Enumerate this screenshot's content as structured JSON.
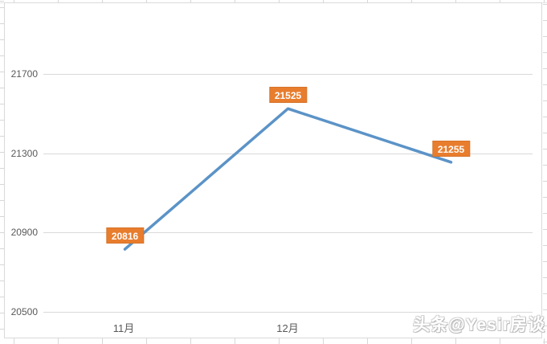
{
  "watermark": {
    "text": "头条@Yesir房谈"
  },
  "chart_data": {
    "type": "line",
    "categories": [
      "11月",
      "12月",
      ""
    ],
    "values": [
      20816,
      21525,
      21255
    ],
    "data_labels": [
      "20816",
      "21525",
      "21255"
    ],
    "x_tick_labels": [
      "11月",
      "12月"
    ],
    "y_tick_labels": [
      "21700",
      "21300",
      "20900",
      "20500"
    ],
    "ylim": [
      20500,
      21700
    ],
    "y_major_unit": 400,
    "title": "",
    "xlabel": "",
    "ylabel": "",
    "grid": "horizontal-only",
    "legend": "none",
    "line_color": "#5b93c7",
    "gridline_color": "#d9d9d9",
    "label_bg_color": "#e87d2e",
    "label_text_color": "#ffffff",
    "axis_text_color": "#595959"
  }
}
